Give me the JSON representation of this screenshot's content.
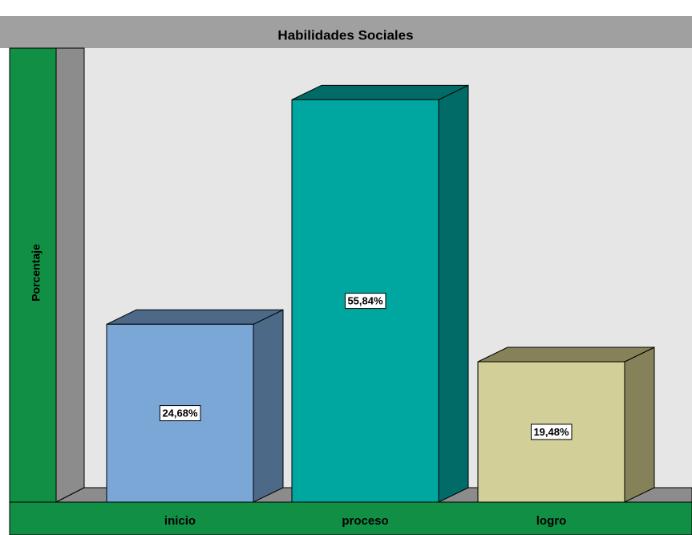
{
  "chart_data": {
    "type": "bar3d",
    "title": "Habilidades Sociales",
    "y_label": "Porcentaje",
    "categories": [
      "inicio",
      "proceso",
      "logro"
    ],
    "values": [
      24.68,
      55.84,
      19.48
    ],
    "value_labels": [
      "24,68%",
      "55,84%",
      "19,48%"
    ],
    "colors": [
      "#7ba7d7",
      "#00a7a1",
      "#d3cf99"
    ],
    "side_colors": [
      "#4d6988",
      "#006b67",
      "#858259"
    ],
    "ylim": [
      0,
      63
    ]
  }
}
